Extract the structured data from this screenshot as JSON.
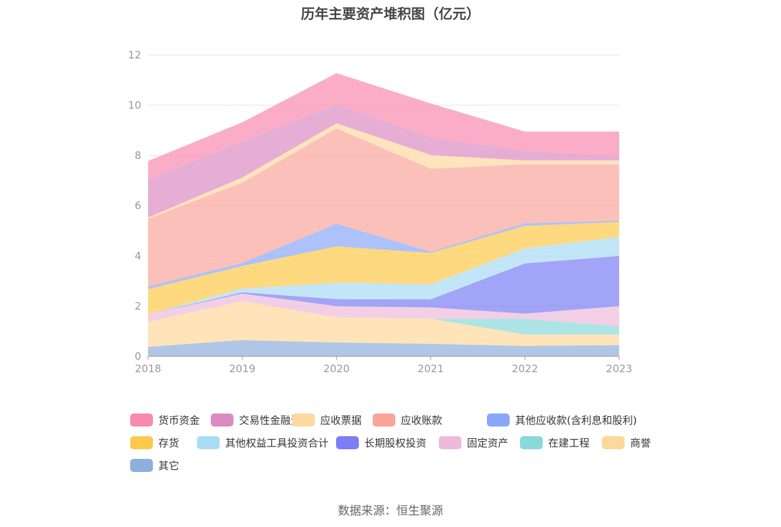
{
  "chart_data": {
    "type": "area",
    "stacked": true,
    "title": "历年主要资产堆积图（亿元）",
    "x": [
      "2018",
      "2019",
      "2020",
      "2021",
      "2022",
      "2023"
    ],
    "ylim": [
      0,
      12
    ],
    "yticks": [
      0,
      2,
      4,
      6,
      8,
      10,
      12
    ],
    "grid": true,
    "legend_position": "bottom",
    "series": [
      {
        "name": "其它",
        "color": "#8eaedb",
        "values": [
          0.38,
          0.65,
          0.55,
          0.5,
          0.42,
          0.45
        ]
      },
      {
        "name": "商誉",
        "color": "#fdd89a",
        "values": [
          1.0,
          1.55,
          1.0,
          1.0,
          0.45,
          0.42
        ]
      },
      {
        "name": "在建工程",
        "color": "#89d8dc",
        "values": [
          0,
          0,
          0,
          0,
          0.63,
          0.33
        ]
      },
      {
        "name": "固定资产",
        "color": "#eebadc",
        "values": [
          0.3,
          0.3,
          0.45,
          0.45,
          0.2,
          0.8
        ]
      },
      {
        "name": "长期股权投资",
        "color": "#7b7ef4",
        "values": [
          0,
          0.05,
          0.28,
          0.32,
          2.0,
          2.0
        ]
      },
      {
        "name": "其他权益工具投资合计",
        "color": "#a8dcf5",
        "values": [
          0,
          0.15,
          0.65,
          0.6,
          0.6,
          0.75
        ]
      },
      {
        "name": "存货",
        "color": "#fdc94a",
        "values": [
          1.0,
          0.9,
          1.45,
          1.25,
          0.9,
          0.6
        ]
      },
      {
        "name": "其他应收款(含利息和股利)",
        "color": "#8aa6f8",
        "values": [
          0.1,
          0.12,
          0.9,
          0.05,
          0.1,
          0.05
        ]
      },
      {
        "name": "应收账款",
        "color": "#faa59c",
        "values": [
          2.7,
          3.2,
          3.8,
          3.3,
          2.35,
          2.25
        ]
      },
      {
        "name": "应收票据",
        "color": "#fdd8a0",
        "values": [
          0.05,
          0.2,
          0.2,
          0.55,
          0.15,
          0.15
        ]
      },
      {
        "name": "交易性金融资产",
        "color": "#dc8bc2",
        "values": [
          1.5,
          1.45,
          0.75,
          0.7,
          0.4,
          0.15
        ]
      },
      {
        "name": "货币资金",
        "color": "#f98aaf",
        "values": [
          0.75,
          0.75,
          1.25,
          1.35,
          0.75,
          1.0
        ]
      }
    ]
  },
  "legend_order": [
    "货币资金",
    "交易性金融资产",
    "应收票据",
    "应收账款",
    "其他应收款(含利息和股利)",
    "存货",
    "其他权益工具投资合计",
    "长期股权投资",
    "固定资产",
    "在建工程",
    "商誉",
    "其它"
  ],
  "source": "数据来源：恒生聚源"
}
